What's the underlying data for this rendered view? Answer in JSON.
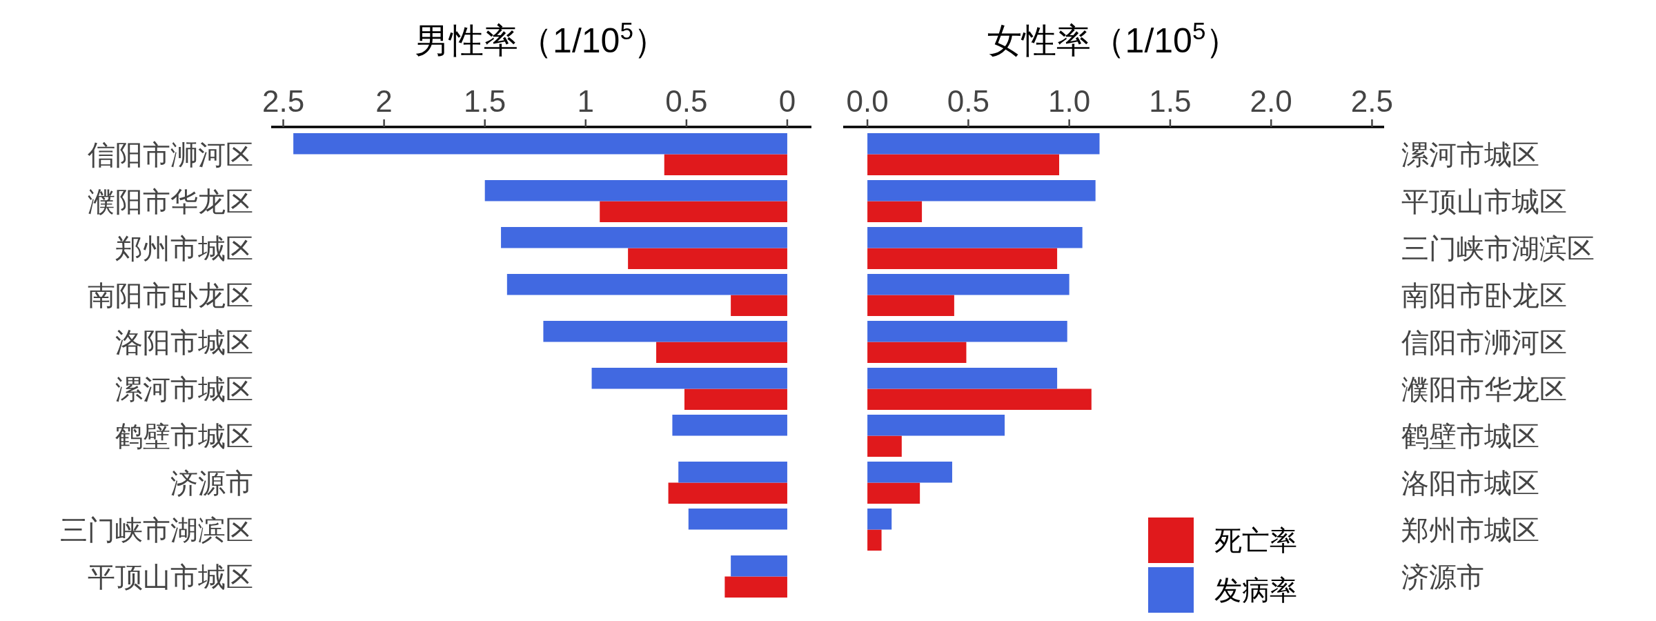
{
  "chart_data": [
    {
      "type": "bar",
      "orientation": "horizontal",
      "title": "男性率（1/10$^{5}$）",
      "categories": [
        "信阳市浉河区",
        "濮阳市华龙区",
        "郑州市城区",
        "南阳市卧龙区",
        "洛阳市城区",
        "漯河市城区",
        "鹤壁市城区",
        "济源市",
        "三门峡市湖滨区",
        "平顶山市城区"
      ],
      "series": [
        {
          "color": "#e0191c",
          "values": [
            0.61,
            0.93,
            0.79,
            0.28,
            0.65,
            0.51,
            null,
            0.59,
            null,
            0.31
          ]
        },
        {
          "color": "#4169e1",
          "values": [
            2.45,
            1.5,
            1.42,
            1.39,
            1.21,
            0.97,
            0.57,
            0.54,
            0.49,
            0.28
          ]
        }
      ],
      "xlim": [
        2.56,
        -0.12
      ],
      "xticks": [
        2.5,
        2,
        1.5,
        1,
        0.5,
        0
      ],
      "grid": false,
      "legend": false
    },
    {
      "type": "bar",
      "orientation": "horizontal",
      "title": "女性率（1/10$^{5}$）",
      "categories": [
        "漯河市城区",
        "平顶山市城区",
        "三门峡市湖滨区",
        "南阳市卧龙区",
        "信阳市浉河区",
        "濮阳市华龙区",
        "鹤壁市城区",
        "洛阳市城区",
        "郑州市城区",
        "济源市"
      ],
      "series": [
        {
          "name": "死亡率",
          "color": "#e0191c",
          "values": [
            0.95,
            0.27,
            0.94,
            0.43,
            0.49,
            1.11,
            0.17,
            0.26,
            0.07,
            null
          ]
        },
        {
          "name": "发病率",
          "color": "#4169e1",
          "values": [
            1.15,
            1.13,
            1.065,
            1.0,
            0.99,
            0.94,
            0.68,
            0.42,
            0.12,
            null
          ]
        }
      ],
      "xlim": [
        -0.12,
        2.56
      ],
      "xticks": [
        {
          "value": 0,
          "label": "0.0"
        },
        {
          "value": 0.5,
          "label": "0.5"
        },
        {
          "value": 1,
          "label": "1.0"
        },
        {
          "value": 1.5,
          "label": "1.5"
        },
        {
          "value": 2,
          "label": "2.0"
        },
        {
          "value": 2.5,
          "label": "2.5"
        }
      ],
      "grid": false,
      "legend": "bottom right"
    }
  ]
}
